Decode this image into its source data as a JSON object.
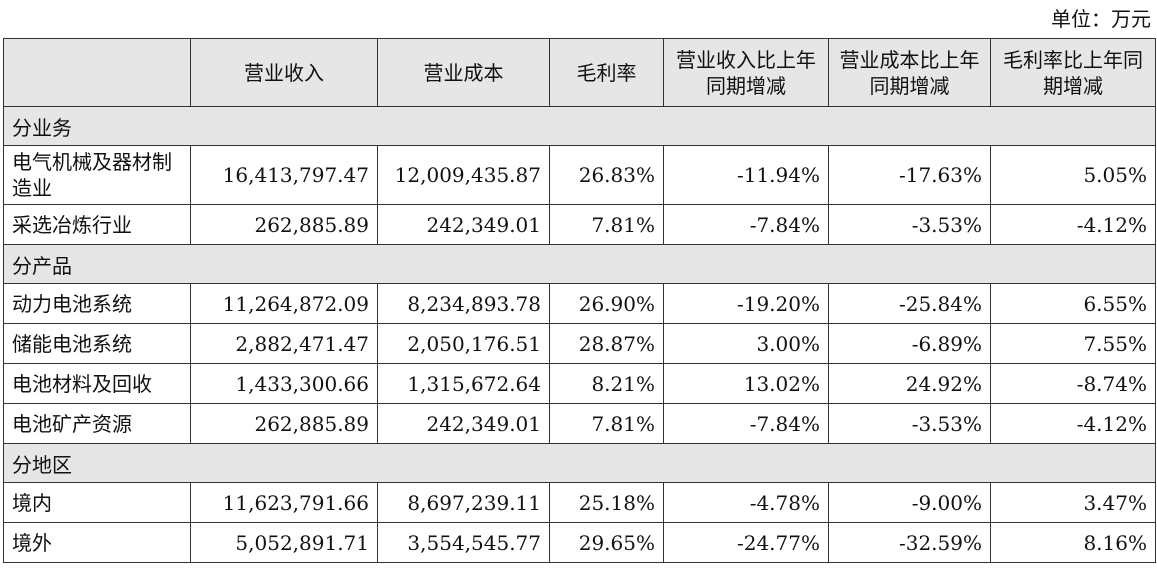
{
  "unit": "单位：万元",
  "header": {
    "corner": "",
    "revenue": "营业收入",
    "cost": "营业成本",
    "margin": "毛利率",
    "revenue_yoy": "营业收入比上年同期增减",
    "cost_yoy": "营业成本比上年同期增减",
    "margin_yoy": "毛利率比上年同期增减"
  },
  "sections": [
    {
      "title": "分业务",
      "rows": [
        {
          "label": "电气机械及器材制造业",
          "revenue": "16,413,797.47",
          "cost": "12,009,435.87",
          "margin": "26.83%",
          "revenue_yoy": "-11.94%",
          "cost_yoy": "-17.63%",
          "margin_yoy": "5.05%"
        },
        {
          "label": "采选冶炼行业",
          "revenue": "262,885.89",
          "cost": "242,349.01",
          "margin": "7.81%",
          "revenue_yoy": "-7.84%",
          "cost_yoy": "-3.53%",
          "margin_yoy": "-4.12%"
        }
      ]
    },
    {
      "title": "分产品",
      "rows": [
        {
          "label": "动力电池系统",
          "revenue": "11,264,872.09",
          "cost": "8,234,893.78",
          "margin": "26.90%",
          "revenue_yoy": "-19.20%",
          "cost_yoy": "-25.84%",
          "margin_yoy": "6.55%"
        },
        {
          "label": "储能电池系统",
          "revenue": "2,882,471.47",
          "cost": "2,050,176.51",
          "margin": "28.87%",
          "revenue_yoy": "3.00%",
          "cost_yoy": "-6.89%",
          "margin_yoy": "7.55%"
        },
        {
          "label": "电池材料及回收",
          "revenue": "1,433,300.66",
          "cost": "1,315,672.64",
          "margin": "8.21%",
          "revenue_yoy": "13.02%",
          "cost_yoy": "24.92%",
          "margin_yoy": "-8.74%"
        },
        {
          "label": "电池矿产资源",
          "revenue": "262,885.89",
          "cost": "242,349.01",
          "margin": "7.81%",
          "revenue_yoy": "-7.84%",
          "cost_yoy": "-3.53%",
          "margin_yoy": "-4.12%"
        }
      ]
    },
    {
      "title": "分地区",
      "rows": [
        {
          "label": "境内",
          "revenue": "11,623,791.66",
          "cost": "8,697,239.11",
          "margin": "25.18%",
          "revenue_yoy": "-4.78%",
          "cost_yoy": "-9.00%",
          "margin_yoy": "3.47%"
        },
        {
          "label": "境外",
          "revenue": "5,052,891.71",
          "cost": "3,554,545.77",
          "margin": "29.65%",
          "revenue_yoy": "-24.77%",
          "cost_yoy": "-32.59%",
          "margin_yoy": "8.16%"
        }
      ]
    }
  ]
}
